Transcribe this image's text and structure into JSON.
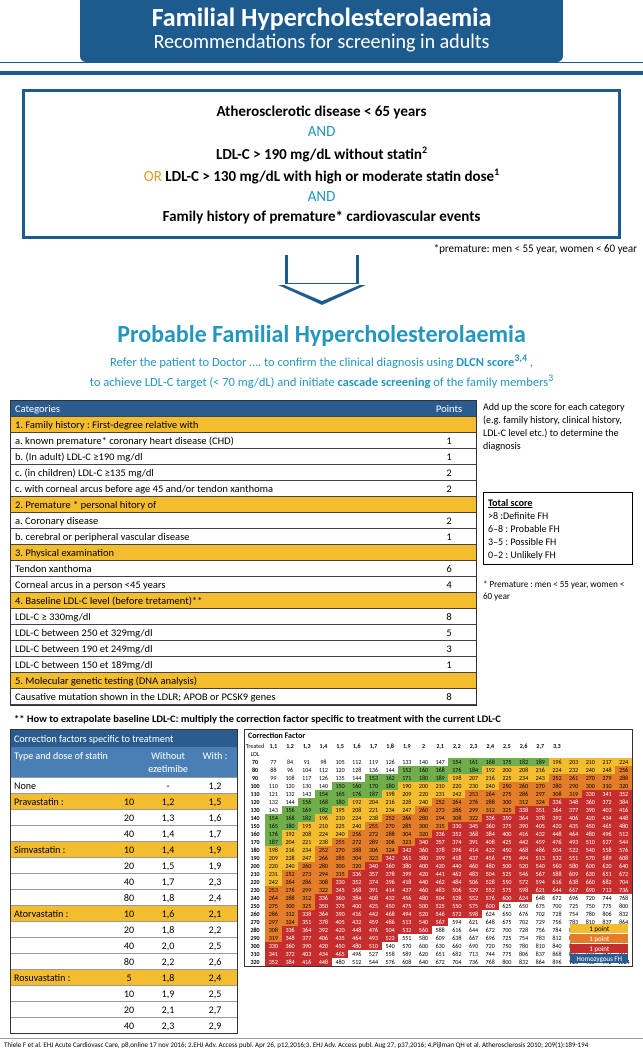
{
  "header": {
    "title": "Familial Hypercholesterolaemia",
    "subtitle": "Recommendations for screening in adults"
  },
  "criteria": {
    "line1": "Atherosclerotic disease < 65 years",
    "and": "AND",
    "line2": "LDL-C > 190 mg/dL without statin",
    "line2sup": "2",
    "or": "OR",
    "line3": " LDL-C > 130 mg/dL with high or moderate statin dose",
    "line3sup": "1",
    "line4": "Family history of premature* cardiovascular events",
    "footnote": "*premature: men < 55 year, women < 60 year"
  },
  "probable": {
    "title": "Probable Familial Hypercholesterolaemia",
    "sub1_a": "Refer the patient to Doctor …. to confirm the clinical diagnosis using ",
    "sub1_b": "DLCN score",
    "sub1_sup": "3,4",
    "sub2_a": "to achieve LDL-C target (< 70 mg/dL) and initiate ",
    "sub2_b": "cascade screening",
    "sub2_c": " of the family members",
    "sub2_sup": "3"
  },
  "dlcn": {
    "head_cat": "Categories",
    "head_pts": "Points",
    "sections": [
      {
        "title": "1. Family history : First-degree relative with",
        "rows": [
          {
            "t": "a. known premature* coronary heart disease (CHD)",
            "p": "1"
          },
          {
            "t": "b. (In adult) LDL-C ≥190 mg/dl",
            "p": "1"
          },
          {
            "t": "c. (in children) LDL-C ≥135 mg/dl",
            "p": "2"
          },
          {
            "t": "c. with corneal arcus before age 45 and/or tendon xanthoma",
            "p": "2"
          }
        ]
      },
      {
        "title": "2. Premature * personal hitory  of",
        "rows": [
          {
            "t": "a. Coronary disease",
            "p": "2"
          },
          {
            "t": "b. cerebral or peripheral vascular disease",
            "p": "1"
          }
        ]
      },
      {
        "title": "3. Physical examination",
        "rows": [
          {
            "t": "Tendon xanthoma",
            "p": "6"
          },
          {
            "t": "Corneal arcus in a person <45 years",
            "p": "4"
          }
        ]
      },
      {
        "title": "4. Baseline LDL-C level (before tretament)**",
        "rows": [
          {
            "t": "LDL-C ≥ 330mg/dl",
            "p": "8"
          },
          {
            "t": "LDL-C between 250 et 329mg/dl",
            "p": "5"
          },
          {
            "t": "LDL-C between 190 et 249mg/dl",
            "p": "3"
          },
          {
            "t": "LDL-C between 150 et 189mg/dl",
            "p": "1"
          }
        ]
      },
      {
        "title": "5. Molecular genetic testing (DNA analysis)",
        "rows": [
          {
            "t": "Causative mutation shown in the LDLR; APOB or PCSK9 genes",
            "p": "8"
          }
        ]
      }
    ]
  },
  "side": {
    "addup": "Add up the score for each category (e.g. family history, clinical history, LDL-C level etc.) to determine the diagnosis",
    "total_title": "Total score",
    "l1": ">8   :Definite FH",
    "l2": "6–8 : Probable FH",
    "l3": "3–5 : Possible FH",
    "l4": "0–2 : Unlikely FH",
    "prem": "* Premature : men < 55 year, women < 60 year"
  },
  "howto": "** How to extrapolate baseline LDL-C: multiply the correction factor specific to treatment with the current LDL-C",
  "corr": {
    "title": "Correction factors specific to treatment",
    "h_type": "Type and dose of statin",
    "h_dose": "",
    "h_without": "Without ezetimibe",
    "h_with": "With :",
    "rows": [
      {
        "n": "None",
        "d": "",
        "w": "-",
        "z": "1,2",
        "sec": false
      },
      {
        "n": "Pravastatin :",
        "d": "10",
        "w": "1,2",
        "z": "1,5",
        "sec": true
      },
      {
        "n": "",
        "d": "20",
        "w": "1,3",
        "z": "1,6",
        "sec": false
      },
      {
        "n": "",
        "d": "40",
        "w": "1,4",
        "z": "1,7",
        "sec": false
      },
      {
        "n": "Simvastatin :",
        "d": "10",
        "w": "1,4",
        "z": "1,9",
        "sec": true
      },
      {
        "n": "",
        "d": "20",
        "w": "1,5",
        "z": "1,9",
        "sec": false
      },
      {
        "n": "",
        "d": "40",
        "w": "1,7",
        "z": "2,3",
        "sec": false
      },
      {
        "n": "",
        "d": "80",
        "w": "1,8",
        "z": "2,4",
        "sec": false
      },
      {
        "n": "Atorvastatin :",
        "d": "10",
        "w": "1,6",
        "z": "2,1",
        "sec": true
      },
      {
        "n": "",
        "d": "20",
        "w": "1,8",
        "z": "2,2",
        "sec": false
      },
      {
        "n": "",
        "d": "40",
        "w": "2,0",
        "z": "2,5",
        "sec": false
      },
      {
        "n": "",
        "d": "80",
        "w": "2,2",
        "z": "2,6",
        "sec": false
      },
      {
        "n": "Rosuvastatin :",
        "d": "5",
        "w": "1,8",
        "z": "2,4",
        "sec": true
      },
      {
        "n": "",
        "d": "10",
        "w": "1,9",
        "z": "2,5",
        "sec": false
      },
      {
        "n": "",
        "d": "20",
        "w": "2,1",
        "z": "2,7",
        "sec": false
      },
      {
        "n": "",
        "d": "40",
        "w": "2,3",
        "z": "2,9",
        "sec": false
      }
    ]
  },
  "heat": {
    "title": "Correction Factor",
    "col_head": [
      "",
      "1,1",
      "1,2",
      "1,3",
      "1,4",
      "1,5",
      "1,6",
      "1,7",
      "1,8",
      "1,9",
      "2",
      "2,1",
      "2,2",
      "2,3",
      "2,4",
      "2,5",
      "2,6",
      "2,7",
      "3,3"
    ],
    "row_labels": [
      "70",
      "80",
      "90",
      "100",
      "110",
      "120",
      "130",
      "140",
      "150",
      "160",
      "170",
      "180",
      "190",
      "200",
      "210",
      "220",
      "230",
      "240",
      "250",
      "260",
      "270",
      "280",
      "290",
      "300",
      "310",
      "320"
    ],
    "legend": [
      {
        "t": "1 point",
        "c": "#f4bd2f"
      },
      {
        "t": "1 point",
        "c": "#e37d2a"
      },
      {
        "t": "1 point",
        "c": "#c62e2e"
      },
      {
        "t": "Homozygous FH",
        "c": "#2a5c8f"
      }
    ]
  },
  "refs": "Thiele F et al. EHJ Acute Cardiovasc Care, p8,online 17 nov 2016; 2.EHJ Adv. Access publ. Apr 26, p12,2016;3. EHJ Adv. Access publ. Aug 27, p37,2016; 4.Pijlman QH et al. Atherosclerosis 2010; 209(1):189-194"
}
